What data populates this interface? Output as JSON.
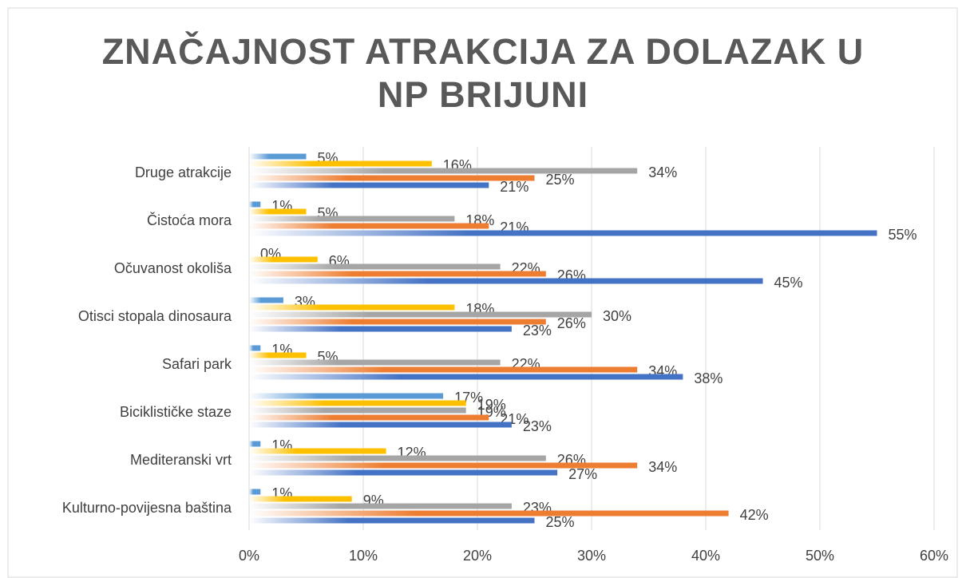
{
  "chart_data": {
    "type": "hbar",
    "title": "ZNAČAJNOST ATRAKCIJA ZA DOLAZAK U NP BRIJUNI",
    "categories": [
      "Druge atrakcije",
      "Čistoća mora",
      "Očuvanost okoliša",
      "Otisci stopala dinosaura",
      "Safari park",
      "Biciklističke staze",
      "Mediteranski vrt",
      "Kulturno-povijesna baština"
    ],
    "series": [
      {
        "color": "#5b9bd5",
        "values": [
          5,
          1,
          0,
          3,
          1,
          17,
          1,
          1
        ],
        "value_labels": [
          "5%",
          "1%",
          "0%",
          "3%",
          "1%",
          "17%",
          "1%",
          "1%"
        ]
      },
      {
        "color": "#ffc000",
        "values": [
          16,
          5,
          6,
          18,
          5,
          19,
          12,
          9
        ],
        "value_labels": [
          "16%",
          "5%",
          "6%",
          "18%",
          "5%",
          "19%",
          "12%",
          "9%"
        ]
      },
      {
        "color": "#a5a5a5",
        "values": [
          34,
          18,
          22,
          30,
          22,
          19,
          26,
          23
        ],
        "value_labels": [
          "34%",
          "18%",
          "22%",
          "30%",
          "22%",
          "19%",
          "26%",
          "23%"
        ]
      },
      {
        "color": "#ed7d31",
        "values": [
          25,
          21,
          26,
          26,
          34,
          21,
          34,
          42
        ],
        "value_labels": [
          "25%",
          "21%",
          "26%",
          "26%",
          "34%",
          "21%",
          "34%",
          "42%"
        ]
      },
      {
        "color": "#4472c4",
        "values": [
          21,
          55,
          45,
          23,
          38,
          23,
          27,
          25
        ],
        "value_labels": [
          "21%",
          "55%",
          "45%",
          "23%",
          "38%",
          "23%",
          "27%",
          "25%"
        ]
      }
    ],
    "xlim": [
      0,
      60
    ],
    "xticks": [
      {
        "value": 0,
        "label": "0%"
      },
      {
        "value": 10,
        "label": "10%"
      },
      {
        "value": 20,
        "label": "20%"
      },
      {
        "value": 30,
        "label": "30%"
      },
      {
        "value": 40,
        "label": "40%"
      },
      {
        "value": 50,
        "label": "50%"
      },
      {
        "value": 60,
        "label": "60%"
      }
    ],
    "grid": true
  }
}
